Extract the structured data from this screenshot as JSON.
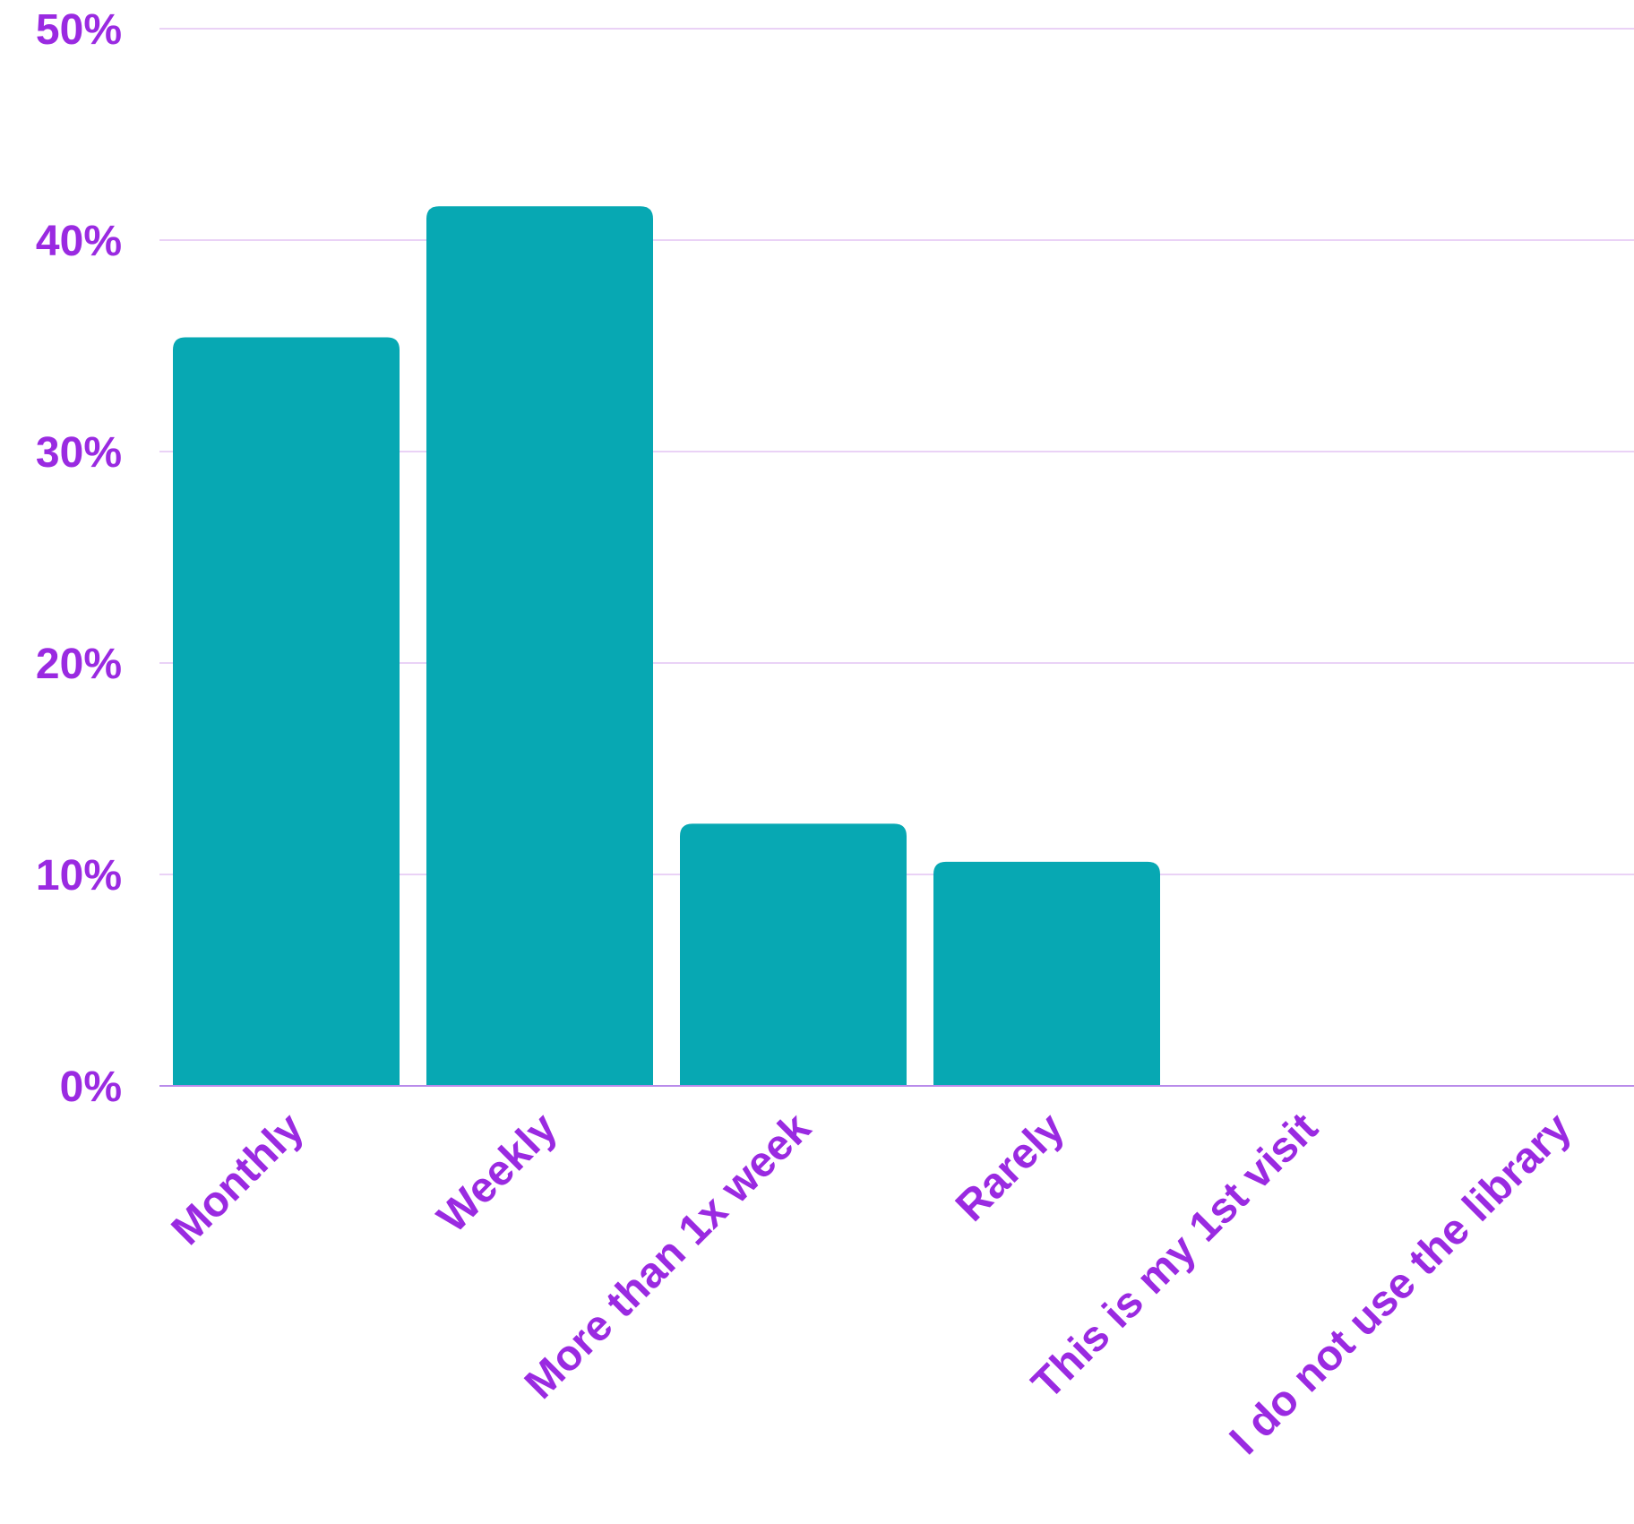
{
  "chart_data": {
    "type": "bar",
    "title": "",
    "xlabel": "",
    "ylabel": "",
    "categories": [
      "Monthly",
      "Weekly",
      "More than 1x week",
      "Rarely",
      "This is my 1st visit",
      "I do not use the library"
    ],
    "values": [
      35.4,
      41.6,
      12.4,
      10.6,
      0,
      0
    ],
    "ylim": [
      0,
      50
    ],
    "y_ticks": [
      0,
      10,
      20,
      30,
      40,
      50
    ],
    "y_tick_labels": [
      "0%",
      "10%",
      "20%",
      "30%",
      "40%",
      "50%"
    ],
    "grid": true,
    "legend": false,
    "colors": {
      "bar": "#07a8b3",
      "text": "#9a2ae1",
      "grid": "#e4c4f4",
      "axis": "#b98bea"
    }
  }
}
